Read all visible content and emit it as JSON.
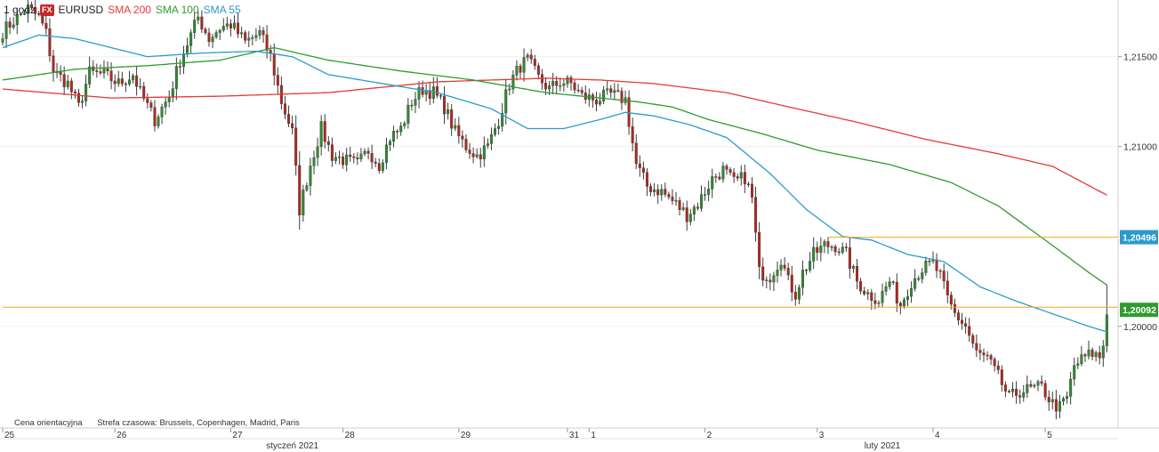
{
  "chart_data": {
    "type": "candlestick",
    "timeframe": "1 godz",
    "symbol": "EURUSD",
    "provider_badge": "FX",
    "legend": [
      {
        "label": "SMA 200",
        "color": "#e53935"
      },
      {
        "label": "SMA 100",
        "color": "#2e9b2e"
      },
      {
        "label": "SMA 55",
        "color": "#2a9bc9"
      }
    ],
    "y_range": [
      1.19435,
      1.21815
    ],
    "y_ticks": [
      "1,21500",
      "1,21000",
      "1,20000"
    ],
    "y_tick_values": [
      1.215,
      1.21,
      1.2
    ],
    "price_labels": [
      {
        "text": "1,20496",
        "value": 1.20496,
        "color": "#2a9bc9"
      },
      {
        "text": "1,20092",
        "value": 1.20092,
        "color": "#2e9b2e"
      }
    ],
    "horizontal_lines": [
      {
        "value": 1.20496,
        "color": "#f5a623",
        "from_index": 228
      },
      {
        "value": 1.20107,
        "color": "#f5a623",
        "from_index": 0
      }
    ],
    "x_day_labels": [
      {
        "label": "25",
        "index": 0
      },
      {
        "label": "26",
        "index": 31
      },
      {
        "label": "27",
        "index": 63
      },
      {
        "label": "28",
        "index": 94
      },
      {
        "label": "29",
        "index": 126
      },
      {
        "label": "31",
        "index": 156
      },
      {
        "label": "1",
        "index": 162
      },
      {
        "label": "2",
        "index": 194
      },
      {
        "label": "3",
        "index": 225
      },
      {
        "label": "4",
        "index": 257
      },
      {
        "label": "5",
        "index": 288
      }
    ],
    "x_month_labels": [
      {
        "label": "styczeń 2021",
        "index": 80
      },
      {
        "label": "luty 2021",
        "index": 243
      }
    ],
    "footer": [
      "Cena orientacyjna",
      "Strefa czasowa: Brussels, Copenhagen, Madrid, Paris"
    ],
    "close_anchors": [
      [
        0,
        1.2164
      ],
      [
        3,
        1.217
      ],
      [
        7,
        1.2177
      ],
      [
        10,
        1.2172
      ],
      [
        12,
        1.2163
      ],
      [
        14,
        1.2142
      ],
      [
        18,
        1.2135
      ],
      [
        21,
        1.2122
      ],
      [
        24,
        1.2141
      ],
      [
        28,
        1.214
      ],
      [
        32,
        1.2135
      ],
      [
        36,
        1.214
      ],
      [
        38,
        1.213
      ],
      [
        42,
        1.2115
      ],
      [
        46,
        1.2128
      ],
      [
        49,
        1.2148
      ],
      [
        52,
        1.2162
      ],
      [
        54,
        1.2172
      ],
      [
        57,
        1.216
      ],
      [
        60,
        1.2166
      ],
      [
        63,
        1.2168
      ],
      [
        67,
        1.2158
      ],
      [
        71,
        1.2163
      ],
      [
        74,
        1.215
      ],
      [
        77,
        1.2125
      ],
      [
        80,
        1.2108
      ],
      [
        82,
        1.2065
      ],
      [
        85,
        1.209
      ],
      [
        88,
        1.211
      ],
      [
        91,
        1.2095
      ],
      [
        95,
        1.2092
      ],
      [
        98,
        1.209
      ],
      [
        101,
        1.2098
      ],
      [
        104,
        1.209
      ],
      [
        107,
        1.2105
      ],
      [
        110,
        1.211
      ],
      [
        113,
        1.2125
      ],
      [
        116,
        1.2132
      ],
      [
        119,
        1.213
      ],
      [
        122,
        1.2122
      ],
      [
        125,
        1.2108
      ],
      [
        128,
        1.21
      ],
      [
        131,
        1.2095
      ],
      [
        134,
        1.21
      ],
      [
        137,
        1.2115
      ],
      [
        140,
        1.2135
      ],
      [
        143,
        1.2145
      ],
      [
        145,
        1.2148
      ],
      [
        148,
        1.2138
      ],
      [
        151,
        1.2132
      ],
      [
        154,
        1.2136
      ],
      [
        157,
        1.2135
      ],
      [
        160,
        1.2128
      ],
      [
        164,
        1.2126
      ],
      [
        168,
        1.2129
      ],
      [
        172,
        1.2126
      ],
      [
        175,
        1.209
      ],
      [
        178,
        1.2078
      ],
      [
        182,
        1.2075
      ],
      [
        186,
        1.2068
      ],
      [
        189,
        1.2062
      ],
      [
        192,
        1.2068
      ],
      [
        196,
        1.2082
      ],
      [
        199,
        1.2087
      ],
      [
        202,
        1.208
      ],
      [
        205,
        1.2083
      ],
      [
        207,
        1.2071
      ],
      [
        209,
        1.203
      ],
      [
        212,
        1.2028
      ],
      [
        215,
        1.2038
      ],
      [
        217,
        1.2025
      ],
      [
        219,
        1.2018
      ],
      [
        221,
        1.203
      ],
      [
        224,
        1.204
      ],
      [
        227,
        1.2045
      ],
      [
        230,
        1.2045
      ],
      [
        233,
        1.204
      ],
      [
        236,
        1.2025
      ],
      [
        239,
        1.2018
      ],
      [
        242,
        1.2015
      ],
      [
        245,
        1.2025
      ],
      [
        248,
        1.2012
      ],
      [
        251,
        1.2025
      ],
      [
        254,
        1.2032
      ],
      [
        257,
        1.2035
      ],
      [
        259,
        1.2028
      ],
      [
        261,
        1.2015
      ],
      [
        263,
        1.2007
      ],
      [
        266,
        1.2
      ],
      [
        269,
        1.1985
      ],
      [
        272,
        1.1982
      ],
      [
        275,
        1.1972
      ],
      [
        278,
        1.196
      ],
      [
        281,
        1.1964
      ],
      [
        284,
        1.1965
      ],
      [
        287,
        1.1966
      ],
      [
        290,
        1.1957
      ],
      [
        292,
        1.1955
      ],
      [
        294,
        1.196
      ],
      [
        296,
        1.1978
      ],
      [
        299,
        1.1983
      ],
      [
        301,
        1.1985
      ],
      [
        303,
        1.1983
      ],
      [
        304,
        1.199
      ],
      [
        305,
        1.2009
      ]
    ],
    "sma200_anchors": [
      [
        0,
        1.2132
      ],
      [
        30,
        1.2127
      ],
      [
        60,
        1.2128
      ],
      [
        90,
        1.213
      ],
      [
        120,
        1.2136
      ],
      [
        150,
        1.2138
      ],
      [
        165,
        1.2137
      ],
      [
        180,
        1.2135
      ],
      [
        200,
        1.213
      ],
      [
        215,
        1.2123
      ],
      [
        235,
        1.2114
      ],
      [
        255,
        1.2104
      ],
      [
        275,
        1.2096
      ],
      [
        290,
        1.2089
      ],
      [
        305,
        1.2073
      ]
    ],
    "sma100_anchors": [
      [
        0,
        1.2137
      ],
      [
        20,
        1.2143
      ],
      [
        40,
        1.2145
      ],
      [
        60,
        1.2148
      ],
      [
        75,
        1.2155
      ],
      [
        90,
        1.2148
      ],
      [
        110,
        1.2142
      ],
      [
        130,
        1.2137
      ],
      [
        150,
        1.213
      ],
      [
        165,
        1.2127
      ],
      [
        175,
        1.2125
      ],
      [
        185,
        1.2122
      ],
      [
        195,
        1.2115
      ],
      [
        210,
        1.2107
      ],
      [
        225,
        1.2098
      ],
      [
        245,
        1.209
      ],
      [
        262,
        1.208
      ],
      [
        275,
        1.2067
      ],
      [
        290,
        1.2045
      ],
      [
        300,
        1.203
      ],
      [
        305,
        1.2023
      ]
    ],
    "sma55_anchors": [
      [
        0,
        1.2155
      ],
      [
        10,
        1.2162
      ],
      [
        20,
        1.216
      ],
      [
        30,
        1.2155
      ],
      [
        40,
        1.215
      ],
      [
        55,
        1.2152
      ],
      [
        70,
        1.2153
      ],
      [
        80,
        1.215
      ],
      [
        90,
        1.214
      ],
      [
        105,
        1.2135
      ],
      [
        120,
        1.213
      ],
      [
        135,
        1.2121
      ],
      [
        145,
        1.211
      ],
      [
        155,
        1.211
      ],
      [
        165,
        1.2115
      ],
      [
        172,
        1.2119
      ],
      [
        180,
        1.2117
      ],
      [
        190,
        1.2112
      ],
      [
        200,
        1.2105
      ],
      [
        212,
        1.2085
      ],
      [
        222,
        1.2065
      ],
      [
        232,
        1.205
      ],
      [
        240,
        1.2048
      ],
      [
        250,
        1.204
      ],
      [
        260,
        1.2036
      ],
      [
        270,
        1.2022
      ],
      [
        280,
        1.2014
      ],
      [
        290,
        1.2007
      ],
      [
        300,
        1.2
      ],
      [
        305,
        1.1997
      ]
    ],
    "wick_highlights": [
      {
        "index": 305,
        "high": 1.2023,
        "low": 1.19855
      }
    ]
  }
}
